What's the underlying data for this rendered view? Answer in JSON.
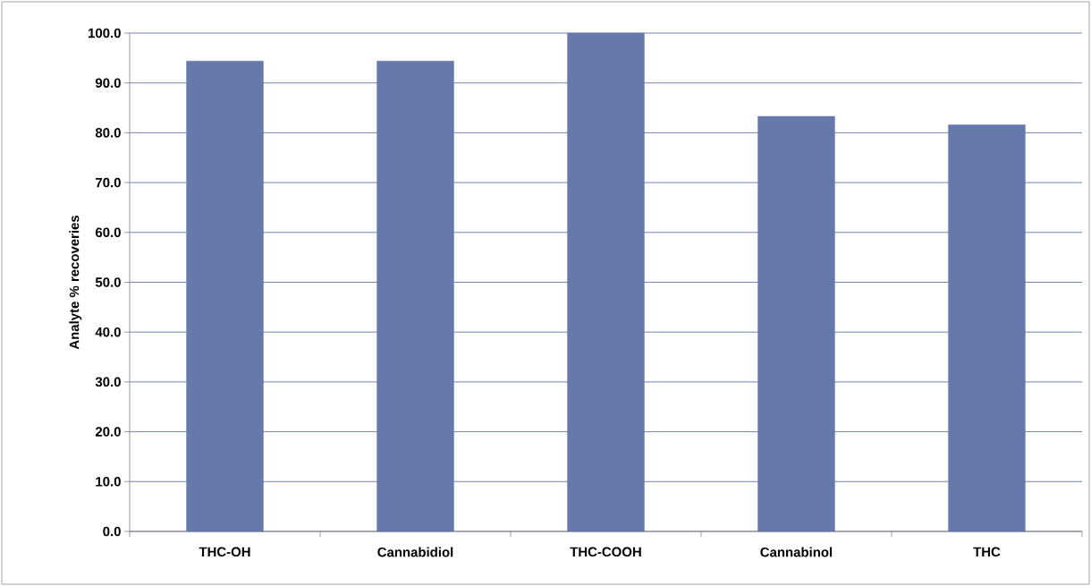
{
  "chart_data": {
    "type": "bar",
    "ylabel": "Analyte % recoveries",
    "categories": [
      "THC-OH",
      "Cannabidiol",
      "THC-COOH",
      "Cannabinol",
      "THC"
    ],
    "values": [
      94.4,
      94.4,
      100,
      83.3,
      81.6
    ],
    "color": "#6779ab",
    "ylim": [
      0,
      100
    ],
    "yticks": [
      {
        "value": 0,
        "label": "0.0"
      },
      {
        "value": 10,
        "label": "10.0"
      },
      {
        "value": 20,
        "label": "20.0"
      },
      {
        "value": 30,
        "label": "30.0"
      },
      {
        "value": 40,
        "label": "40.0"
      },
      {
        "value": 50,
        "label": "50.0"
      },
      {
        "value": 60,
        "label": "60.0"
      },
      {
        "value": 70,
        "label": "70.0"
      },
      {
        "value": 80,
        "label": "80.0"
      },
      {
        "value": 90,
        "label": "90.0"
      },
      {
        "value": 100,
        "label": "100.0"
      }
    ],
    "grid": "y"
  }
}
